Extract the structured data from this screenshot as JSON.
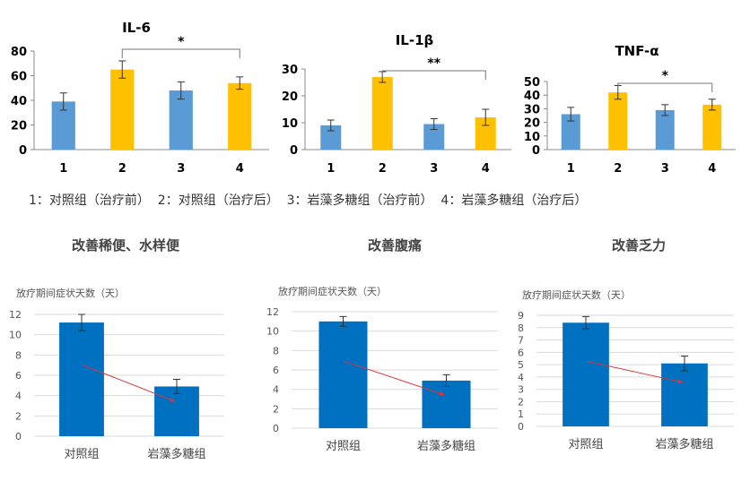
{
  "legend_text": "1：对照组（治疗前）  2：对照组（治疗后）  3：岩藻多糖组（治疗前）  4：岩藻多糖组（治疗后）",
  "colors": {
    "blue": "#5b9bd5",
    "yellow": "#ffc000",
    "dark_blue": "#0070c0",
    "arrow": "#d9383a"
  },
  "chart_data": [
    {
      "type": "bar",
      "title": "IL-6",
      "categories": [
        "1",
        "2",
        "3",
        "4"
      ],
      "values": [
        39,
        65,
        48,
        54
      ],
      "errors": [
        7,
        7,
        7,
        5
      ],
      "ylim": [
        0,
        80
      ],
      "yticks": [
        0,
        20,
        40,
        60,
        80
      ],
      "colors": [
        "blue",
        "yellow",
        "blue",
        "yellow"
      ],
      "annotation": {
        "from": "2",
        "to": "4",
        "label": "*"
      }
    },
    {
      "type": "bar",
      "title": "IL-1β",
      "categories": [
        "1",
        "2",
        "3",
        "4"
      ],
      "values": [
        9,
        27,
        9.5,
        12
      ],
      "errors": [
        2,
        2,
        2,
        3
      ],
      "ylim": [
        0,
        30
      ],
      "yticks": [
        0,
        10,
        20,
        30
      ],
      "colors": [
        "blue",
        "yellow",
        "blue",
        "yellow"
      ],
      "annotation": {
        "from": "2",
        "to": "4",
        "label": "**"
      }
    },
    {
      "type": "bar",
      "title": "TNF-α",
      "categories": [
        "1",
        "2",
        "3",
        "4"
      ],
      "values": [
        26,
        42,
        29,
        33
      ],
      "errors": [
        5,
        5,
        4,
        4
      ],
      "ylim": [
        0,
        50
      ],
      "yticks": [
        0,
        10,
        20,
        30,
        40,
        50
      ],
      "colors": [
        "blue",
        "yellow",
        "blue",
        "yellow"
      ],
      "annotation": {
        "from": "2",
        "to": "4",
        "label": "*"
      }
    },
    {
      "type": "bar",
      "title": "改善稀便、水样便",
      "ylabel": "放疗期间症状天数（天）",
      "categories": [
        "对照组",
        "岩藻多糖组"
      ],
      "values": [
        11.2,
        4.9
      ],
      "errors": [
        0.8,
        0.7
      ],
      "ylim": [
        0,
        12
      ],
      "yticks": [
        0,
        2,
        4,
        6,
        8,
        10,
        12
      ],
      "grid": true
    },
    {
      "type": "bar",
      "title": "改善腹痛",
      "ylabel": "放疗期间症状天数（天）",
      "categories": [
        "对照组",
        "岩藻多糖组"
      ],
      "values": [
        11,
        4.9
      ],
      "errors": [
        0.5,
        0.6
      ],
      "ylim": [
        0,
        12
      ],
      "yticks": [
        0,
        2,
        4,
        6,
        8,
        10,
        12
      ],
      "grid": true
    },
    {
      "type": "bar",
      "title": "改善乏力",
      "ylabel": "放疗期间症状天数（天）",
      "categories": [
        "对照组",
        "岩藻多糖组"
      ],
      "values": [
        8.4,
        5.1
      ],
      "errors": [
        0.5,
        0.6
      ],
      "ylim": [
        0,
        9
      ],
      "yticks": [
        0,
        1,
        2,
        3,
        4,
        5,
        6,
        7,
        8,
        9
      ],
      "grid": true
    }
  ]
}
